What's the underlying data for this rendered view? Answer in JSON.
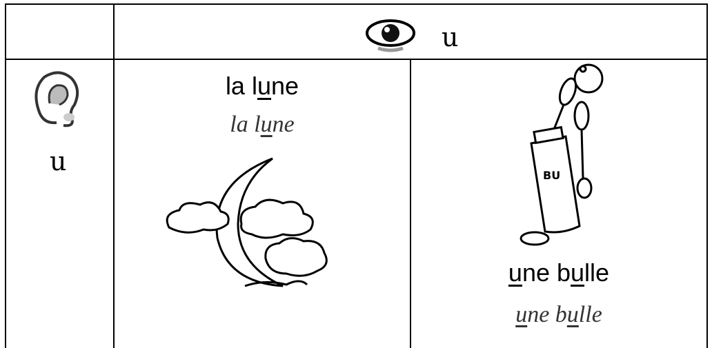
{
  "header": {
    "grapheme": "u"
  },
  "sound": {
    "grapheme": "u"
  },
  "words": [
    {
      "print": [
        {
          "text": "la l"
        },
        {
          "text": "u",
          "underlined": true
        },
        {
          "text": "ne"
        }
      ],
      "cursive": [
        {
          "text": "la l"
        },
        {
          "text": "u",
          "underlined": true
        },
        {
          "text": "ne"
        }
      ]
    },
    {
      "print": [
        {
          "text": "u",
          "underlined": true
        },
        {
          "text": "ne b"
        },
        {
          "text": "u",
          "underlined": true
        },
        {
          "text": "lle"
        }
      ],
      "cursive": [
        {
          "text": "u",
          "underlined": true
        },
        {
          "text": "ne b"
        },
        {
          "text": "u",
          "underlined": true
        },
        {
          "text": "lle"
        }
      ]
    }
  ]
}
